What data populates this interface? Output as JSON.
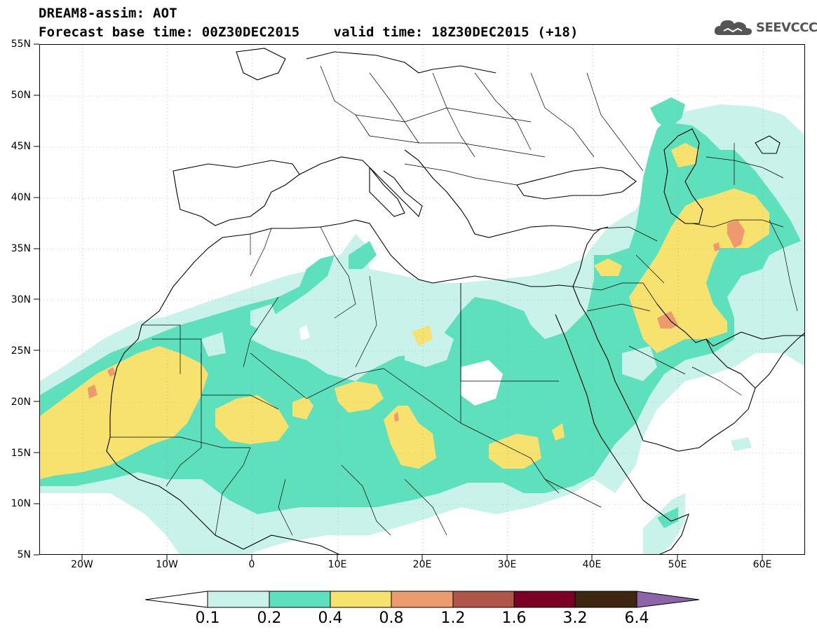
{
  "header": {
    "title": "DREAM8-assim: AOT",
    "base_time": "Forecast base time: 00Z30DEC2015",
    "valid_time": "valid time: 18Z30DEC2015 (+18)"
  },
  "logo": {
    "text": "SEEVCCC",
    "icon": "cloud-icon"
  },
  "axes": {
    "y_ticks": [
      "55N",
      "50N",
      "45N",
      "40N",
      "35N",
      "30N",
      "25N",
      "20N",
      "15N",
      "10N",
      "5N"
    ],
    "x_ticks": [
      "20W",
      "10W",
      "0",
      "10E",
      "20E",
      "30E",
      "40E",
      "50E",
      "60E"
    ]
  },
  "colorbar": {
    "labels": [
      "0.1",
      "0.2",
      "0.4",
      "0.8",
      "1.2",
      "1.6",
      "3.2",
      "6.4"
    ],
    "colors": [
      "#ffffff",
      "#c8f2ea",
      "#5ee0bd",
      "#f7e26f",
      "#ec9a6e",
      "#b05648",
      "#7a0026",
      "#3e2712",
      "#8e64a8"
    ]
  },
  "field": {
    "levels": {
      "lt_0_1": "#ffffff",
      "0_1_to_0_2": "#c8f2ea",
      "0_2_to_0_4": "#5ee0bd",
      "0_4_to_0_8": "#f7e26f",
      "0_8_to_1_2": "#ec9a6e"
    }
  }
}
